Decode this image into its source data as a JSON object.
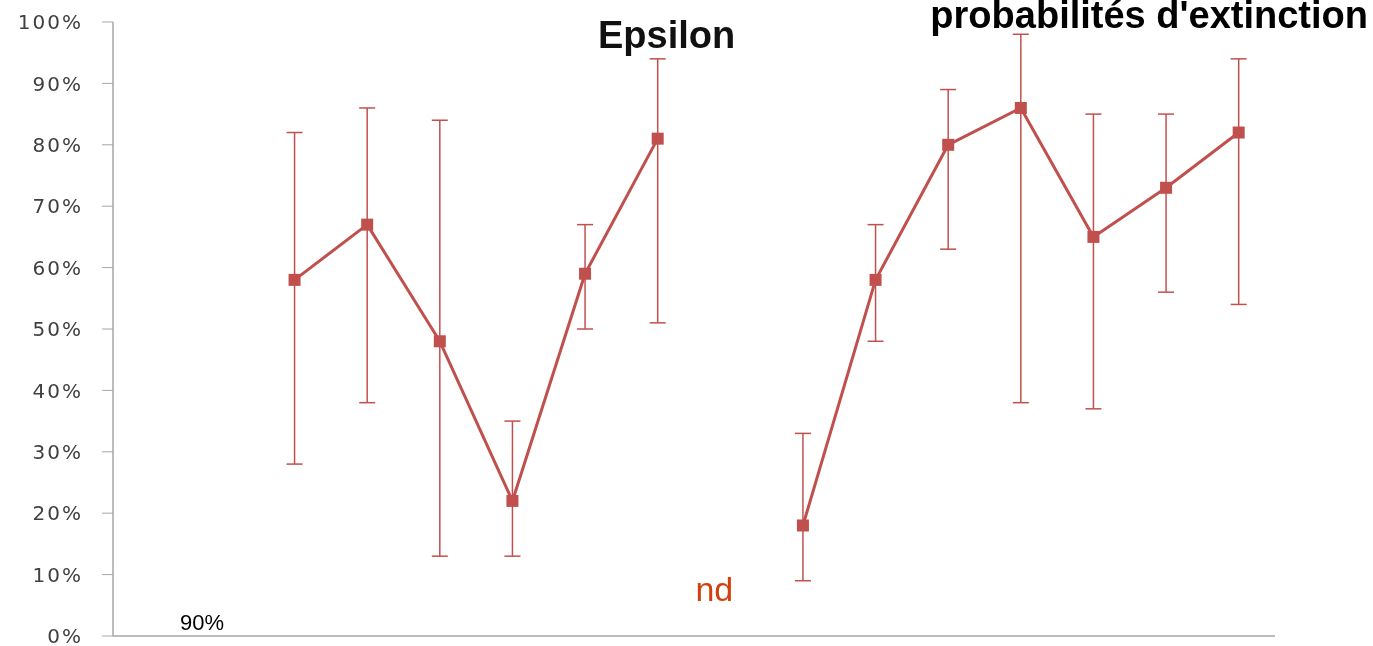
{
  "chart_data": {
    "type": "line",
    "title": "probabilités d'extinction",
    "subtitle": "Epsilon",
    "categories": [
      null,
      null,
      null,
      null,
      null,
      null,
      null,
      null,
      null,
      null,
      null,
      null,
      null,
      null,
      null,
      null
    ],
    "values": [
      null,
      null,
      58,
      67,
      48,
      22,
      59,
      81,
      null,
      18,
      58,
      80,
      86,
      65,
      73,
      82
    ],
    "errors": [
      null,
      null,
      [
        28,
        82
      ],
      [
        38,
        86
      ],
      [
        13,
        84
      ],
      [
        13,
        35
      ],
      [
        50,
        67
      ],
      [
        51,
        94
      ],
      null,
      [
        9,
        33
      ],
      [
        48,
        67
      ],
      [
        63,
        89
      ],
      [
        38,
        98
      ],
      [
        37,
        85
      ],
      [
        56,
        85
      ],
      [
        54,
        94
      ]
    ],
    "color": "#c0504d",
    "marker": "square",
    "line_style": "solid",
    "ylim": [
      0,
      100
    ],
    "yticks": [
      {
        "value": 0,
        "label": "0%"
      },
      {
        "value": 10,
        "label": "10%"
      },
      {
        "value": 20,
        "label": "20%"
      },
      {
        "value": 30,
        "label": "30%"
      },
      {
        "value": 40,
        "label": "40%"
      },
      {
        "value": 50,
        "label": "50%"
      },
      {
        "value": 60,
        "label": "60%"
      },
      {
        "value": 70,
        "label": "70%"
      },
      {
        "value": 80,
        "label": "80%"
      },
      {
        "value": 90,
        "label": "90%"
      },
      {
        "value": 100,
        "label": "100%"
      }
    ],
    "tick_labels": "y",
    "annotations": [
      "90%",
      "nd"
    ]
  }
}
